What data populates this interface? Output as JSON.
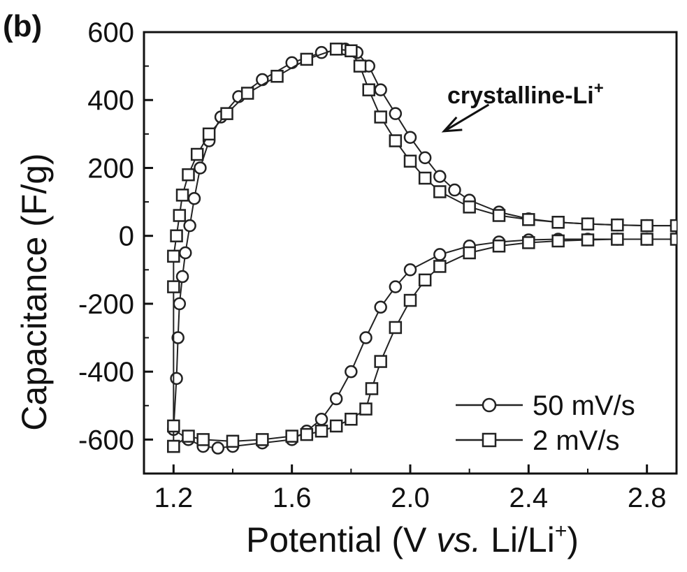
{
  "chart_data": {
    "type": "scatter",
    "panel_label": "(b)",
    "xlabel_prefix": "Potential (V ",
    "xlabel_italic": "vs.",
    "xlabel_suffix": " Li/Li",
    "xlabel_superscript": "+",
    "xlabel_close": ")",
    "ylabel": "Capacitance (F/g)",
    "xlim": [
      1.1,
      2.9
    ],
    "ylim": [
      -700,
      600
    ],
    "x_ticks": [
      1.2,
      1.6,
      2.0,
      2.4,
      2.8
    ],
    "x_tick_labels": [
      "1.2",
      "1.6",
      "2.0",
      "2.4",
      "2.8"
    ],
    "y_ticks": [
      -600,
      -400,
      -200,
      0,
      200,
      400,
      600
    ],
    "y_tick_labels": [
      "-600",
      "-400",
      "-200",
      "0",
      "200",
      "400",
      "600"
    ],
    "grid": false,
    "legend_position": "bottom-right",
    "annotation": {
      "text": "crystalline-Li",
      "superscript": "+",
      "points_to": {
        "x": 2.1,
        "y": 300
      }
    },
    "series": [
      {
        "name": "50 mV/s",
        "marker": "circle",
        "x": [
          1.2,
          1.21,
          1.215,
          1.22,
          1.23,
          1.24,
          1.255,
          1.27,
          1.29,
          1.32,
          1.36,
          1.42,
          1.5,
          1.6,
          1.7,
          1.78,
          1.82,
          1.86,
          1.9,
          1.95,
          2.0,
          2.05,
          2.1,
          2.15,
          2.2,
          2.3,
          2.4,
          2.5,
          2.6,
          2.7,
          2.8,
          2.9,
          2.9,
          2.8,
          2.7,
          2.6,
          2.5,
          2.4,
          2.3,
          2.2,
          2.1,
          2.0,
          1.95,
          1.9,
          1.85,
          1.8,
          1.75,
          1.7,
          1.65,
          1.6,
          1.5,
          1.4,
          1.35,
          1.3,
          1.25,
          1.2
        ],
        "y": [
          -570,
          -420,
          -300,
          -200,
          -120,
          -50,
          30,
          110,
          200,
          280,
          350,
          410,
          460,
          510,
          540,
          550,
          540,
          500,
          430,
          360,
          290,
          230,
          175,
          135,
          105,
          70,
          50,
          40,
          35,
          32,
          30,
          30,
          -10,
          -10,
          -10,
          -10,
          -10,
          -12,
          -18,
          -30,
          -55,
          -100,
          -150,
          -210,
          -300,
          -400,
          -480,
          -540,
          -575,
          -600,
          -610,
          -620,
          -625,
          -620,
          -600,
          -570
        ]
      },
      {
        "name": "2 mV/s",
        "marker": "square",
        "x": [
          1.2,
          1.2,
          1.2,
          1.2,
          1.21,
          1.22,
          1.23,
          1.25,
          1.28,
          1.32,
          1.38,
          1.45,
          1.55,
          1.65,
          1.75,
          1.8,
          1.83,
          1.86,
          1.9,
          1.95,
          2.0,
          2.05,
          2.1,
          2.2,
          2.3,
          2.4,
          2.5,
          2.6,
          2.7,
          2.8,
          2.9,
          2.9,
          2.8,
          2.7,
          2.6,
          2.5,
          2.4,
          2.3,
          2.2,
          2.1,
          2.05,
          2.0,
          1.95,
          1.9,
          1.87,
          1.85,
          1.8,
          1.75,
          1.7,
          1.65,
          1.6,
          1.5,
          1.4,
          1.3,
          1.25,
          1.2
        ],
        "y": [
          -620,
          -560,
          -150,
          -60,
          0,
          60,
          120,
          180,
          240,
          300,
          360,
          420,
          470,
          520,
          550,
          545,
          500,
          430,
          350,
          280,
          220,
          170,
          130,
          85,
          60,
          48,
          40,
          35,
          32,
          30,
          30,
          -10,
          -10,
          -10,
          -12,
          -15,
          -20,
          -30,
          -50,
          -90,
          -130,
          -190,
          -270,
          -370,
          -450,
          -510,
          -540,
          -560,
          -575,
          -585,
          -590,
          -600,
          -605,
          -600,
          -590,
          -620
        ]
      }
    ]
  }
}
